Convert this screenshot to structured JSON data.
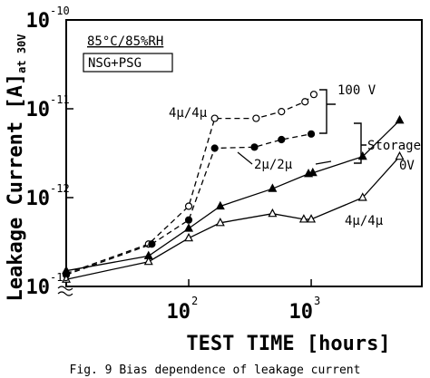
{
  "chart_data": {
    "type": "scatter",
    "x_scale": "log",
    "y_scale": "log",
    "x_label": "TEST TIME [hours]",
    "y_label": "Leakage Current [A]",
    "y_label_sub": "at 30V",
    "caption": "Fig. 9 Bias dependence of leakage current",
    "conditions": [
      "85°C/85%RH",
      "NSG+PSG"
    ],
    "annotations": {
      "bias_high": "100 V",
      "bias_storage": "Storage",
      "bias_zero": "0V",
      "mid": "2μ/2μ",
      "upper": "4μ/4μ",
      "lower": "4μ/4μ"
    },
    "xlim": [
      10,
      8000
    ],
    "ylim": [
      1e-13,
      1e-10
    ],
    "xticks": [
      {
        "value": 100,
        "label": "10",
        "exponent": "2"
      },
      {
        "value": 1000,
        "label": "10",
        "exponent": "3"
      }
    ],
    "yticks": [
      {
        "value": 1e-10,
        "label": "10",
        "exponent": "-10"
      },
      {
        "value": 1e-11,
        "label": "10",
        "exponent": "-11"
      },
      {
        "value": 1e-12,
        "label": "10",
        "exponent": "-12"
      },
      {
        "value": 1e-13,
        "label": "10",
        "exponent": "-13"
      }
    ],
    "series": [
      {
        "marker": "circle",
        "filled": false,
        "line": "dashed",
        "color": "#000000",
        "x": [
          10,
          47,
          100,
          163,
          355,
          572,
          890,
          1050
        ],
        "values": [
          1.4e-13,
          3e-13,
          8e-13,
          7.8e-12,
          7.8e-12,
          9.3e-12,
          1.2e-11,
          1.45e-11
        ]
      },
      {
        "marker": "circle",
        "filled": true,
        "line": "dashed",
        "color": "#000000",
        "x": [
          10,
          50,
          100,
          163,
          344,
          572,
          1000
        ],
        "values": [
          1.35e-13,
          3e-13,
          5.6e-13,
          3.6e-12,
          3.7e-12,
          4.5e-12,
          5.2e-12
        ]
      },
      {
        "marker": "triangle",
        "filled": true,
        "line": "solid",
        "color": "#000000",
        "x": [
          10,
          47,
          100,
          181,
          483,
          950,
          1030,
          2630,
          5270
        ],
        "values": [
          1.5e-13,
          2.2e-13,
          4.5e-13,
          8e-13,
          1.26e-12,
          1.85e-12,
          1.9e-12,
          2.9e-12,
          7.4e-12
        ]
      },
      {
        "marker": "triangle",
        "filled": false,
        "line": "solid",
        "color": "#000000",
        "x": [
          10,
          47,
          100,
          181,
          483,
          870,
          1000,
          2630,
          5270
        ],
        "values": [
          1.2e-13,
          1.9e-13,
          3.5e-13,
          5.2e-13,
          6.6e-13,
          5.7e-13,
          5.7e-13,
          1e-12,
          2.9e-12
        ]
      }
    ]
  }
}
